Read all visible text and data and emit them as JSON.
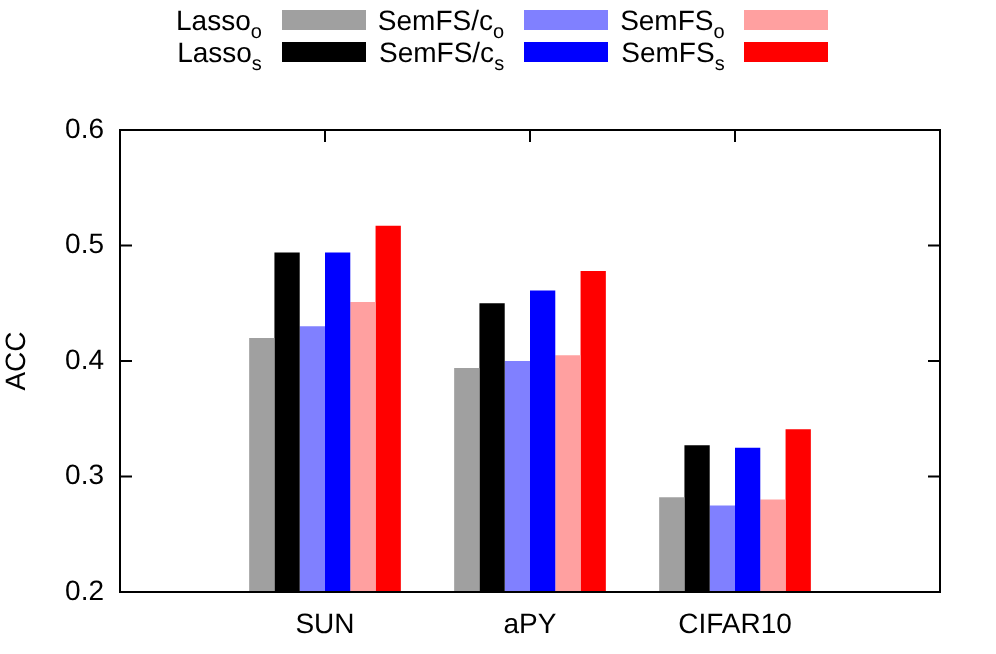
{
  "chart_data": {
    "type": "bar",
    "ylabel": "ACC",
    "categories": [
      "SUN",
      "aPY",
      "CIFAR10"
    ],
    "ylim": [
      0.2,
      0.6
    ],
    "yticks": [
      0.2,
      0.3,
      0.4,
      0.5,
      0.6
    ],
    "grid": false,
    "legend": "top",
    "series": [
      {
        "name": "Lasso$_{o}$",
        "color": "#a0a0a0",
        "values": [
          0.42,
          0.394,
          0.282
        ]
      },
      {
        "name": "Lasso$_{s}$",
        "color": "#000000",
        "values": [
          0.494,
          0.45,
          0.327
        ]
      },
      {
        "name": "SemFS/c$_{o}$",
        "color": "#8080ff",
        "values": [
          0.43,
          0.4,
          0.275
        ]
      },
      {
        "name": "SemFS/c$_{s}$",
        "color": "#0000ff",
        "values": [
          0.494,
          0.461,
          0.325
        ]
      },
      {
        "name": "SemFS$_{o}$",
        "color": "#ffa0a0",
        "values": [
          0.451,
          0.405,
          0.28
        ]
      },
      {
        "name": "SemFS$_{s}$",
        "color": "#ff0000",
        "values": [
          0.517,
          0.478,
          0.341
        ]
      }
    ]
  }
}
